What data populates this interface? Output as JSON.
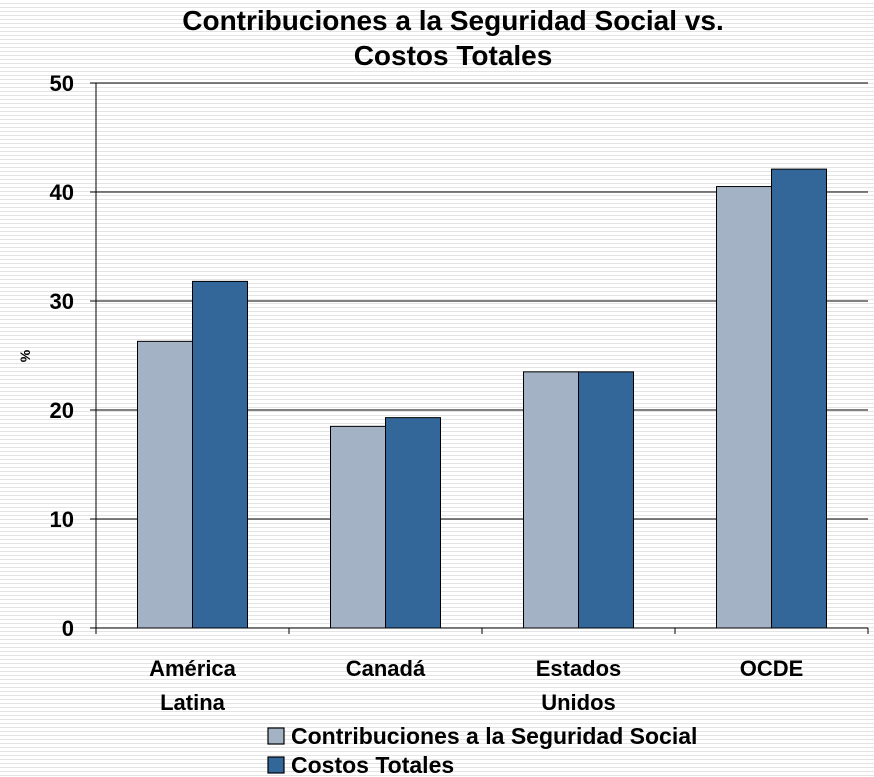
{
  "chart_data": {
    "type": "bar",
    "title": [
      "Contribuciones a la Seguridad Social vs.",
      "Costos Totales"
    ],
    "xlabel": "",
    "ylabel": "%",
    "ylim": [
      0,
      50
    ],
    "yticks": [
      0,
      10,
      20,
      30,
      40,
      50
    ],
    "grid": true,
    "legend_position": "bottom",
    "categories": [
      [
        "América",
        "Latina"
      ],
      [
        "Canadá"
      ],
      [
        "Estados",
        "Unidos"
      ],
      [
        "OCDE"
      ]
    ],
    "series": [
      {
        "name": "Contribuciones a la Seguridad Social",
        "color": "#a3b3c5",
        "values": [
          26.3,
          18.5,
          23.5,
          40.5
        ]
      },
      {
        "name": "Costos Totales",
        "color": "#336699",
        "values": [
          31.8,
          19.3,
          23.5,
          42.1
        ]
      }
    ]
  }
}
